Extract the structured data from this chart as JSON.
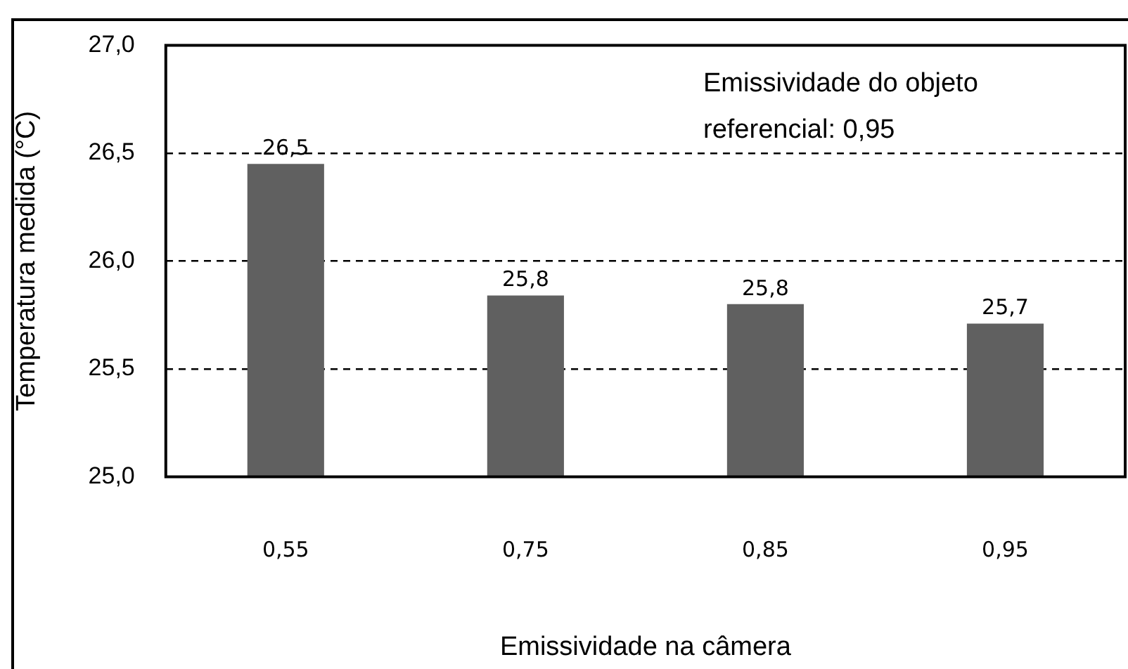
{
  "chart_data": {
    "type": "bar",
    "xlabel": "Emissividade na câmera",
    "ylabel": "Temperatura medida (°C)",
    "categories": [
      "0,55",
      "0,75",
      "0,85",
      "0,95"
    ],
    "values": [
      26.45,
      25.84,
      25.8,
      25.71
    ],
    "value_labels": [
      "26,5",
      "25,8",
      "25,8",
      "25,7"
    ],
    "color": "#606060",
    "ylim": [
      25,
      27
    ],
    "yticks": [
      {
        "value": 25,
        "label": "25,0"
      },
      {
        "value": 25.5,
        "label": "25,5"
      },
      {
        "value": 26,
        "label": "26,0"
      },
      {
        "value": 26.5,
        "label": "26,5"
      },
      {
        "value": 27,
        "label": "27,0"
      }
    ],
    "grid": "y",
    "legend": false,
    "annotations": [
      "Emissividade do objeto referencial: 0,95"
    ]
  }
}
